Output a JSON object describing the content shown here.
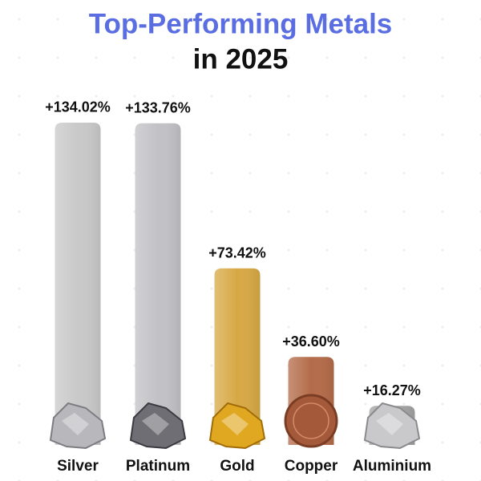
{
  "chart_data": {
    "type": "bar",
    "title": "Top-Performing Metals",
    "subtitle": "in 2025",
    "categories": [
      "Silver",
      "Platinum",
      "Gold",
      "Copper",
      "Aluminium"
    ],
    "values": [
      134.02,
      133.76,
      73.42,
      36.6,
      16.27
    ],
    "value_labels": [
      "+134.02%",
      "+133.76%",
      "+73.42%",
      "+36.60%",
      "+16.27%"
    ],
    "colors": [
      "#c9c9c9",
      "#c2c2c6",
      "#d7a945",
      "#b46c4a",
      "#a3a3a3"
    ]
  }
}
